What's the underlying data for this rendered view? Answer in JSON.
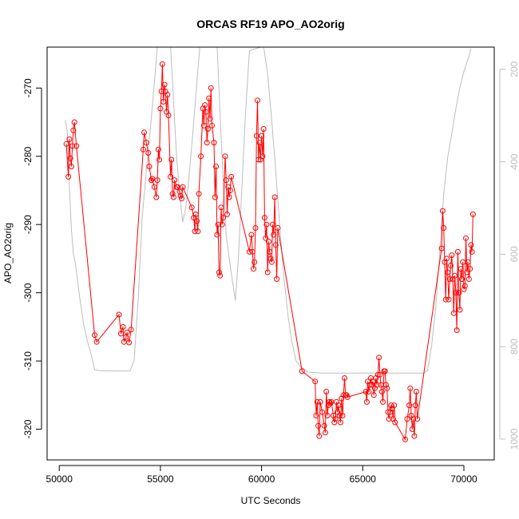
{
  "chart_data": {
    "type": "line",
    "title": "ORCAS RF19 APO_AO2orig",
    "xlabel": "UTC Seconds",
    "ylabel": "APO_AO2orig",
    "xlim": [
      49400,
      71500
    ],
    "ylim": [
      -324.5,
      -264
    ],
    "x_ticks": [
      50000,
      55000,
      60000,
      65000,
      70000
    ],
    "y_ticks": [
      -320,
      -310,
      -300,
      -290,
      -280,
      -270
    ],
    "right_axis": {
      "ylim": [
        1045,
        152
      ],
      "ticks": [
        200,
        400,
        600,
        800,
        1000
      ],
      "color": "#bdbdbd"
    },
    "grid": false,
    "colors": {
      "primary": "#ff0000",
      "secondary": "#bdbdbd"
    },
    "series": [
      {
        "axis": "left",
        "color": "#ff0000",
        "markers": true,
        "points": [
          [
            50350,
            -278.2
          ],
          [
            50450,
            -283.0
          ],
          [
            50500,
            -277.5
          ],
          [
            50550,
            -280.3
          ],
          [
            50600,
            -281.5
          ],
          [
            50650,
            -278.5
          ],
          [
            50700,
            -276.2
          ],
          [
            50750,
            -275.0
          ],
          [
            50850,
            -278.5
          ],
          [
            51750,
            -306.2
          ],
          [
            51850,
            -307.2
          ],
          [
            52950,
            -303.2
          ],
          [
            53050,
            -306.0
          ],
          [
            53150,
            -305.0
          ],
          [
            53200,
            -307.2
          ],
          [
            53300,
            -306.5
          ],
          [
            53350,
            -305.8
          ],
          [
            53450,
            -307.3
          ],
          [
            53550,
            -305.4
          ],
          [
            54150,
            -279.0
          ],
          [
            54200,
            -276.5
          ],
          [
            54300,
            -278.0
          ],
          [
            54400,
            -279.5
          ],
          [
            54450,
            -281.5
          ],
          [
            54550,
            -283.5
          ],
          [
            54600,
            -283.3
          ],
          [
            54700,
            -284.5
          ],
          [
            54800,
            -286.0
          ],
          [
            54850,
            -283.5
          ],
          [
            54900,
            -279.0
          ],
          [
            54950,
            -280.5
          ],
          [
            55000,
            -273.0
          ],
          [
            55050,
            -270.5
          ],
          [
            55100,
            -266.5
          ],
          [
            55150,
            -272.0
          ],
          [
            55200,
            -269.5
          ],
          [
            55250,
            -270.5
          ],
          [
            55300,
            -273.5
          ],
          [
            55350,
            -271.0
          ],
          [
            55400,
            -274.0
          ],
          [
            55500,
            -283.0
          ],
          [
            55550,
            -280.5
          ],
          [
            55600,
            -285.5
          ],
          [
            55650,
            -286.0
          ],
          [
            55700,
            -283.5
          ],
          [
            55800,
            -284.5
          ],
          [
            55850,
            -284.5
          ],
          [
            55950,
            -285.2
          ],
          [
            56000,
            -285.8
          ],
          [
            56050,
            -286.2
          ],
          [
            56100,
            -284.5
          ],
          [
            56550,
            -287.5
          ],
          [
            56650,
            -289.0
          ],
          [
            56700,
            -291.0
          ],
          [
            56750,
            -288.5
          ],
          [
            56800,
            -289.5
          ],
          [
            56850,
            -291.0
          ],
          [
            56900,
            -285.5
          ],
          [
            57000,
            -280.0
          ],
          [
            57100,
            -273.0
          ],
          [
            57150,
            -275.5
          ],
          [
            57200,
            -272.5
          ],
          [
            57250,
            -273.5
          ],
          [
            57300,
            -278.0
          ],
          [
            57350,
            -276.0
          ],
          [
            57400,
            -271.5
          ],
          [
            57450,
            -274.5
          ],
          [
            57500,
            -270.0
          ],
          [
            57550,
            -275.5
          ],
          [
            57650,
            -278.0
          ],
          [
            57700,
            -286.0
          ],
          [
            57750,
            -281.5
          ],
          [
            57800,
            -291.5
          ],
          [
            57850,
            -290.0
          ],
          [
            57900,
            -297.0
          ],
          [
            57950,
            -297.5
          ],
          [
            58000,
            -287.5
          ],
          [
            58050,
            -290.0
          ],
          [
            58100,
            -289.0
          ],
          [
            58200,
            -280.0
          ],
          [
            58250,
            -283.5
          ],
          [
            58300,
            -288.5
          ],
          [
            58350,
            -284.5
          ],
          [
            58400,
            -286.0
          ],
          [
            58450,
            -285.0
          ],
          [
            58500,
            -283.0
          ],
          [
            59400,
            -294.0
          ],
          [
            59500,
            -291.5
          ],
          [
            59550,
            -294.0
          ],
          [
            59600,
            -296.5
          ],
          [
            59650,
            -295.5
          ],
          [
            59700,
            -290.5
          ],
          [
            59750,
            -277.0
          ],
          [
            59800,
            -271.8
          ],
          [
            59850,
            -280.5
          ],
          [
            59900,
            -278.0
          ],
          [
            59950,
            -280.5
          ],
          [
            60000,
            -277.0
          ],
          [
            60050,
            -280.0
          ],
          [
            60100,
            -276.0
          ],
          [
            60150,
            -289.0
          ],
          [
            60200,
            -292.0
          ],
          [
            60250,
            -290.0
          ],
          [
            60300,
            -297.0
          ],
          [
            60350,
            -292.5
          ],
          [
            60400,
            -294.0
          ],
          [
            60450,
            -295.0
          ],
          [
            60500,
            -295.5
          ],
          [
            60550,
            -290.0
          ],
          [
            60600,
            -291.5
          ],
          [
            60650,
            -286.0
          ],
          [
            60700,
            -293.0
          ],
          [
            60750,
            -298.0
          ],
          [
            60800,
            -290.5
          ],
          [
            62000,
            -311.5
          ],
          [
            62650,
            -313.0
          ],
          [
            62700,
            -318.0
          ],
          [
            62750,
            -316.0
          ],
          [
            62800,
            -319.5
          ],
          [
            62850,
            -321.0
          ],
          [
            62900,
            -316.0
          ],
          [
            63000,
            -317.5
          ],
          [
            63100,
            -319.5
          ],
          [
            63150,
            -320.5
          ],
          [
            63200,
            -314.5
          ],
          [
            63250,
            -318.0
          ],
          [
            63300,
            -316.5
          ],
          [
            63350,
            -316.0
          ],
          [
            63400,
            -316.2
          ],
          [
            63450,
            -316.0
          ],
          [
            63550,
            -318.0
          ],
          [
            63600,
            -319.0
          ],
          [
            63650,
            -318.5
          ],
          [
            63700,
            -316.0
          ],
          [
            63750,
            -317.5
          ],
          [
            63800,
            -316.5
          ],
          [
            63850,
            -318.0
          ],
          [
            63900,
            -319.0
          ],
          [
            63950,
            -315.5
          ],
          [
            64000,
            -318.0
          ],
          [
            64050,
            -315.0
          ],
          [
            64100,
            -312.5
          ],
          [
            64150,
            -315.0
          ],
          [
            64200,
            -315.0
          ],
          [
            64250,
            -315.3
          ],
          [
            65150,
            -314.5
          ],
          [
            65200,
            -316.0
          ],
          [
            65250,
            -313.0
          ],
          [
            65300,
            -314.5
          ],
          [
            65350,
            -313.5
          ],
          [
            65400,
            -312.5
          ],
          [
            65450,
            -313.5
          ],
          [
            65500,
            -313.0
          ],
          [
            65550,
            -315.0
          ],
          [
            65600,
            -314.0
          ],
          [
            65650,
            -312.5
          ],
          [
            65700,
            -313.5
          ],
          [
            65750,
            -312.0
          ],
          [
            65800,
            -309.5
          ],
          [
            65850,
            -312.0
          ],
          [
            65900,
            -313.5
          ],
          [
            65950,
            -314.5
          ],
          [
            66000,
            -316.0
          ],
          [
            66050,
            -311.5
          ],
          [
            66100,
            -311.5
          ],
          [
            66150,
            -313.5
          ],
          [
            66200,
            -314.0
          ],
          [
            66250,
            -317.5
          ],
          [
            66300,
            -318.5
          ],
          [
            66350,
            -317.5
          ],
          [
            66400,
            -316.5
          ],
          [
            66450,
            -317.0
          ],
          [
            66500,
            -318.5
          ],
          [
            66550,
            -316.5
          ],
          [
            66600,
            -319.0
          ],
          [
            67100,
            -321.5
          ],
          [
            67200,
            -318.5
          ],
          [
            67300,
            -316.5
          ],
          [
            67350,
            -314.0
          ],
          [
            67400,
            -318.0
          ],
          [
            67450,
            -320.0
          ],
          [
            67500,
            -318.5
          ],
          [
            67550,
            -321.0
          ],
          [
            67600,
            -316.5
          ],
          [
            67650,
            -314.5
          ],
          [
            67700,
            -318.5
          ],
          [
            68900,
            -293.5
          ],
          [
            68950,
            -288.0
          ],
          [
            69000,
            -290.5
          ],
          [
            69050,
            -295.5
          ],
          [
            69100,
            -301.0
          ],
          [
            69150,
            -295.0
          ],
          [
            69200,
            -297.0
          ],
          [
            69250,
            -301.0
          ],
          [
            69300,
            -298.0
          ],
          [
            69350,
            -296.0
          ],
          [
            69400,
            -294.5
          ],
          [
            69450,
            -298.0
          ],
          [
            69500,
            -303.0
          ],
          [
            69550,
            -297.5
          ],
          [
            69600,
            -300.0
          ],
          [
            69650,
            -305.5
          ],
          [
            69700,
            -294.0
          ],
          [
            69750,
            -300.0
          ],
          [
            69800,
            -302.5
          ],
          [
            69850,
            -296.5
          ],
          [
            69900,
            -298.0
          ],
          [
            69950,
            -295.5
          ],
          [
            70000,
            -299.5
          ],
          [
            70050,
            -299.0
          ],
          [
            70100,
            -292.0
          ],
          [
            70150,
            -297.0
          ],
          [
            70200,
            -295.5
          ],
          [
            70250,
            -298.0
          ],
          [
            70300,
            -296.5
          ],
          [
            70350,
            -293.0
          ],
          [
            70400,
            -294.0
          ],
          [
            70450,
            -288.5
          ]
        ]
      },
      {
        "axis": "right",
        "color": "#bdbdbd",
        "markers": false,
        "points": [
          [
            50300,
            310
          ],
          [
            50400,
            335
          ],
          [
            50500,
            455
          ],
          [
            50600,
            545
          ],
          [
            50700,
            600
          ],
          [
            50800,
            620
          ],
          [
            51000,
            690
          ],
          [
            51200,
            750
          ],
          [
            51400,
            790
          ],
          [
            51600,
            820
          ],
          [
            51750,
            850
          ],
          [
            52000,
            852
          ],
          [
            53500,
            853
          ],
          [
            53700,
            830
          ],
          [
            53900,
            700
          ],
          [
            54100,
            520
          ],
          [
            54300,
            420
          ],
          [
            54500,
            330
          ],
          [
            54700,
            230
          ],
          [
            54850,
            150
          ],
          [
            55500,
            150
          ],
          [
            55650,
            270
          ],
          [
            55800,
            390
          ],
          [
            55950,
            470
          ],
          [
            56100,
            530
          ],
          [
            56250,
            500
          ],
          [
            56400,
            440
          ],
          [
            56600,
            340
          ],
          [
            56800,
            230
          ],
          [
            56950,
            150
          ],
          [
            57800,
            150
          ],
          [
            57950,
            300
          ],
          [
            58100,
            440
          ],
          [
            58250,
            560
          ],
          [
            58400,
            610
          ],
          [
            58500,
            640
          ],
          [
            58700,
            700
          ],
          [
            58850,
            610
          ],
          [
            59000,
            480
          ],
          [
            59200,
            300
          ],
          [
            59400,
            160
          ],
          [
            60100,
            150
          ],
          [
            60300,
            210
          ],
          [
            60500,
            310
          ],
          [
            60700,
            420
          ],
          [
            60900,
            540
          ],
          [
            61100,
            650
          ],
          [
            61300,
            730
          ],
          [
            61500,
            790
          ],
          [
            61700,
            830
          ],
          [
            61900,
            842
          ],
          [
            62300,
            855
          ],
          [
            63000,
            857
          ],
          [
            64000,
            857
          ],
          [
            65000,
            857
          ],
          [
            66000,
            857
          ],
          [
            67000,
            857
          ],
          [
            68000,
            857
          ],
          [
            68200,
            852
          ],
          [
            68400,
            800
          ],
          [
            68600,
            720
          ],
          [
            68800,
            600
          ],
          [
            69000,
            470
          ],
          [
            69200,
            390
          ],
          [
            69400,
            340
          ],
          [
            69600,
            285
          ],
          [
            69800,
            240
          ],
          [
            70000,
            205
          ],
          [
            70200,
            178
          ],
          [
            70350,
            155
          ]
        ]
      }
    ]
  }
}
